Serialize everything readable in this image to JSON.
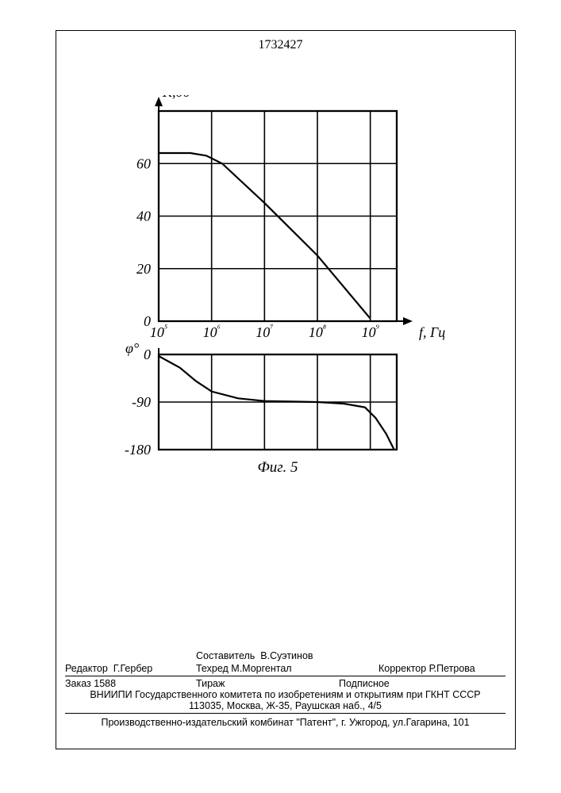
{
  "document_number": "1732427",
  "figure_caption": "Фиг. 5",
  "chart_gain": {
    "type": "line",
    "ylabel": "К,дб",
    "xlabel": "f, Гц",
    "x_scale": "log",
    "x_ticks": [
      "10⁵",
      "10⁶",
      "10⁷",
      "10⁸",
      "10⁹"
    ],
    "x_tick_values": [
      5,
      6,
      7,
      8,
      9
    ],
    "y_ticks": [
      0,
      20,
      40,
      60
    ],
    "ylim": [
      0,
      80
    ],
    "xlim": [
      5,
      9.5
    ],
    "data_x": [
      5.0,
      5.6,
      5.9,
      6.2,
      7.0,
      8.0,
      9.0
    ],
    "data_y": [
      64,
      64,
      63,
      60,
      45,
      25,
      1
    ],
    "line_color": "#000000",
    "line_width": 2.2,
    "grid_color": "#000000",
    "background": "#ffffff",
    "font_size": 18
  },
  "chart_phase": {
    "type": "line",
    "ylabel": "φ°",
    "x_scale": "log",
    "x_tick_values": [
      5,
      6,
      7,
      8,
      9
    ],
    "y_ticks": [
      0,
      -90,
      -180
    ],
    "ylim": [
      -180,
      0
    ],
    "xlim": [
      5,
      9.5
    ],
    "data_x": [
      5.0,
      5.4,
      5.7,
      6.0,
      6.5,
      7.0,
      8.0,
      8.5,
      8.9,
      9.1,
      9.3,
      9.45
    ],
    "data_y": [
      -3,
      -25,
      -50,
      -70,
      -83,
      -88,
      -90,
      -93,
      -100,
      -120,
      -150,
      -180
    ],
    "line_color": "#000000",
    "line_width": 2.2,
    "grid_color": "#000000",
    "background": "#ffffff",
    "font_size": 18
  },
  "credits": {
    "editor_label": "Редактор",
    "editor_name": "Г.Гербер",
    "compiler_label": "Составитель",
    "compiler_name": "В.Суэтинов",
    "techred_label": "Техред",
    "techred_name": "М.Моргентал",
    "corrector_label": "Корректор",
    "corrector_name": "Р.Петрова"
  },
  "order": {
    "order_label": "Заказ",
    "order_number": "1588",
    "tirazh_label": "Тираж",
    "podpisnoe": "Подписное"
  },
  "institution": {
    "line1": "ВНИИПИ Государственного комитета по изобретениям и открытиям при ГКНТ СССР",
    "line2": "113035, Москва, Ж-35, Раушская наб., 4/5"
  },
  "printer": "Производственно-издательский комбинат \"Патент\", г. Ужгород, ул.Гагарина, 101"
}
